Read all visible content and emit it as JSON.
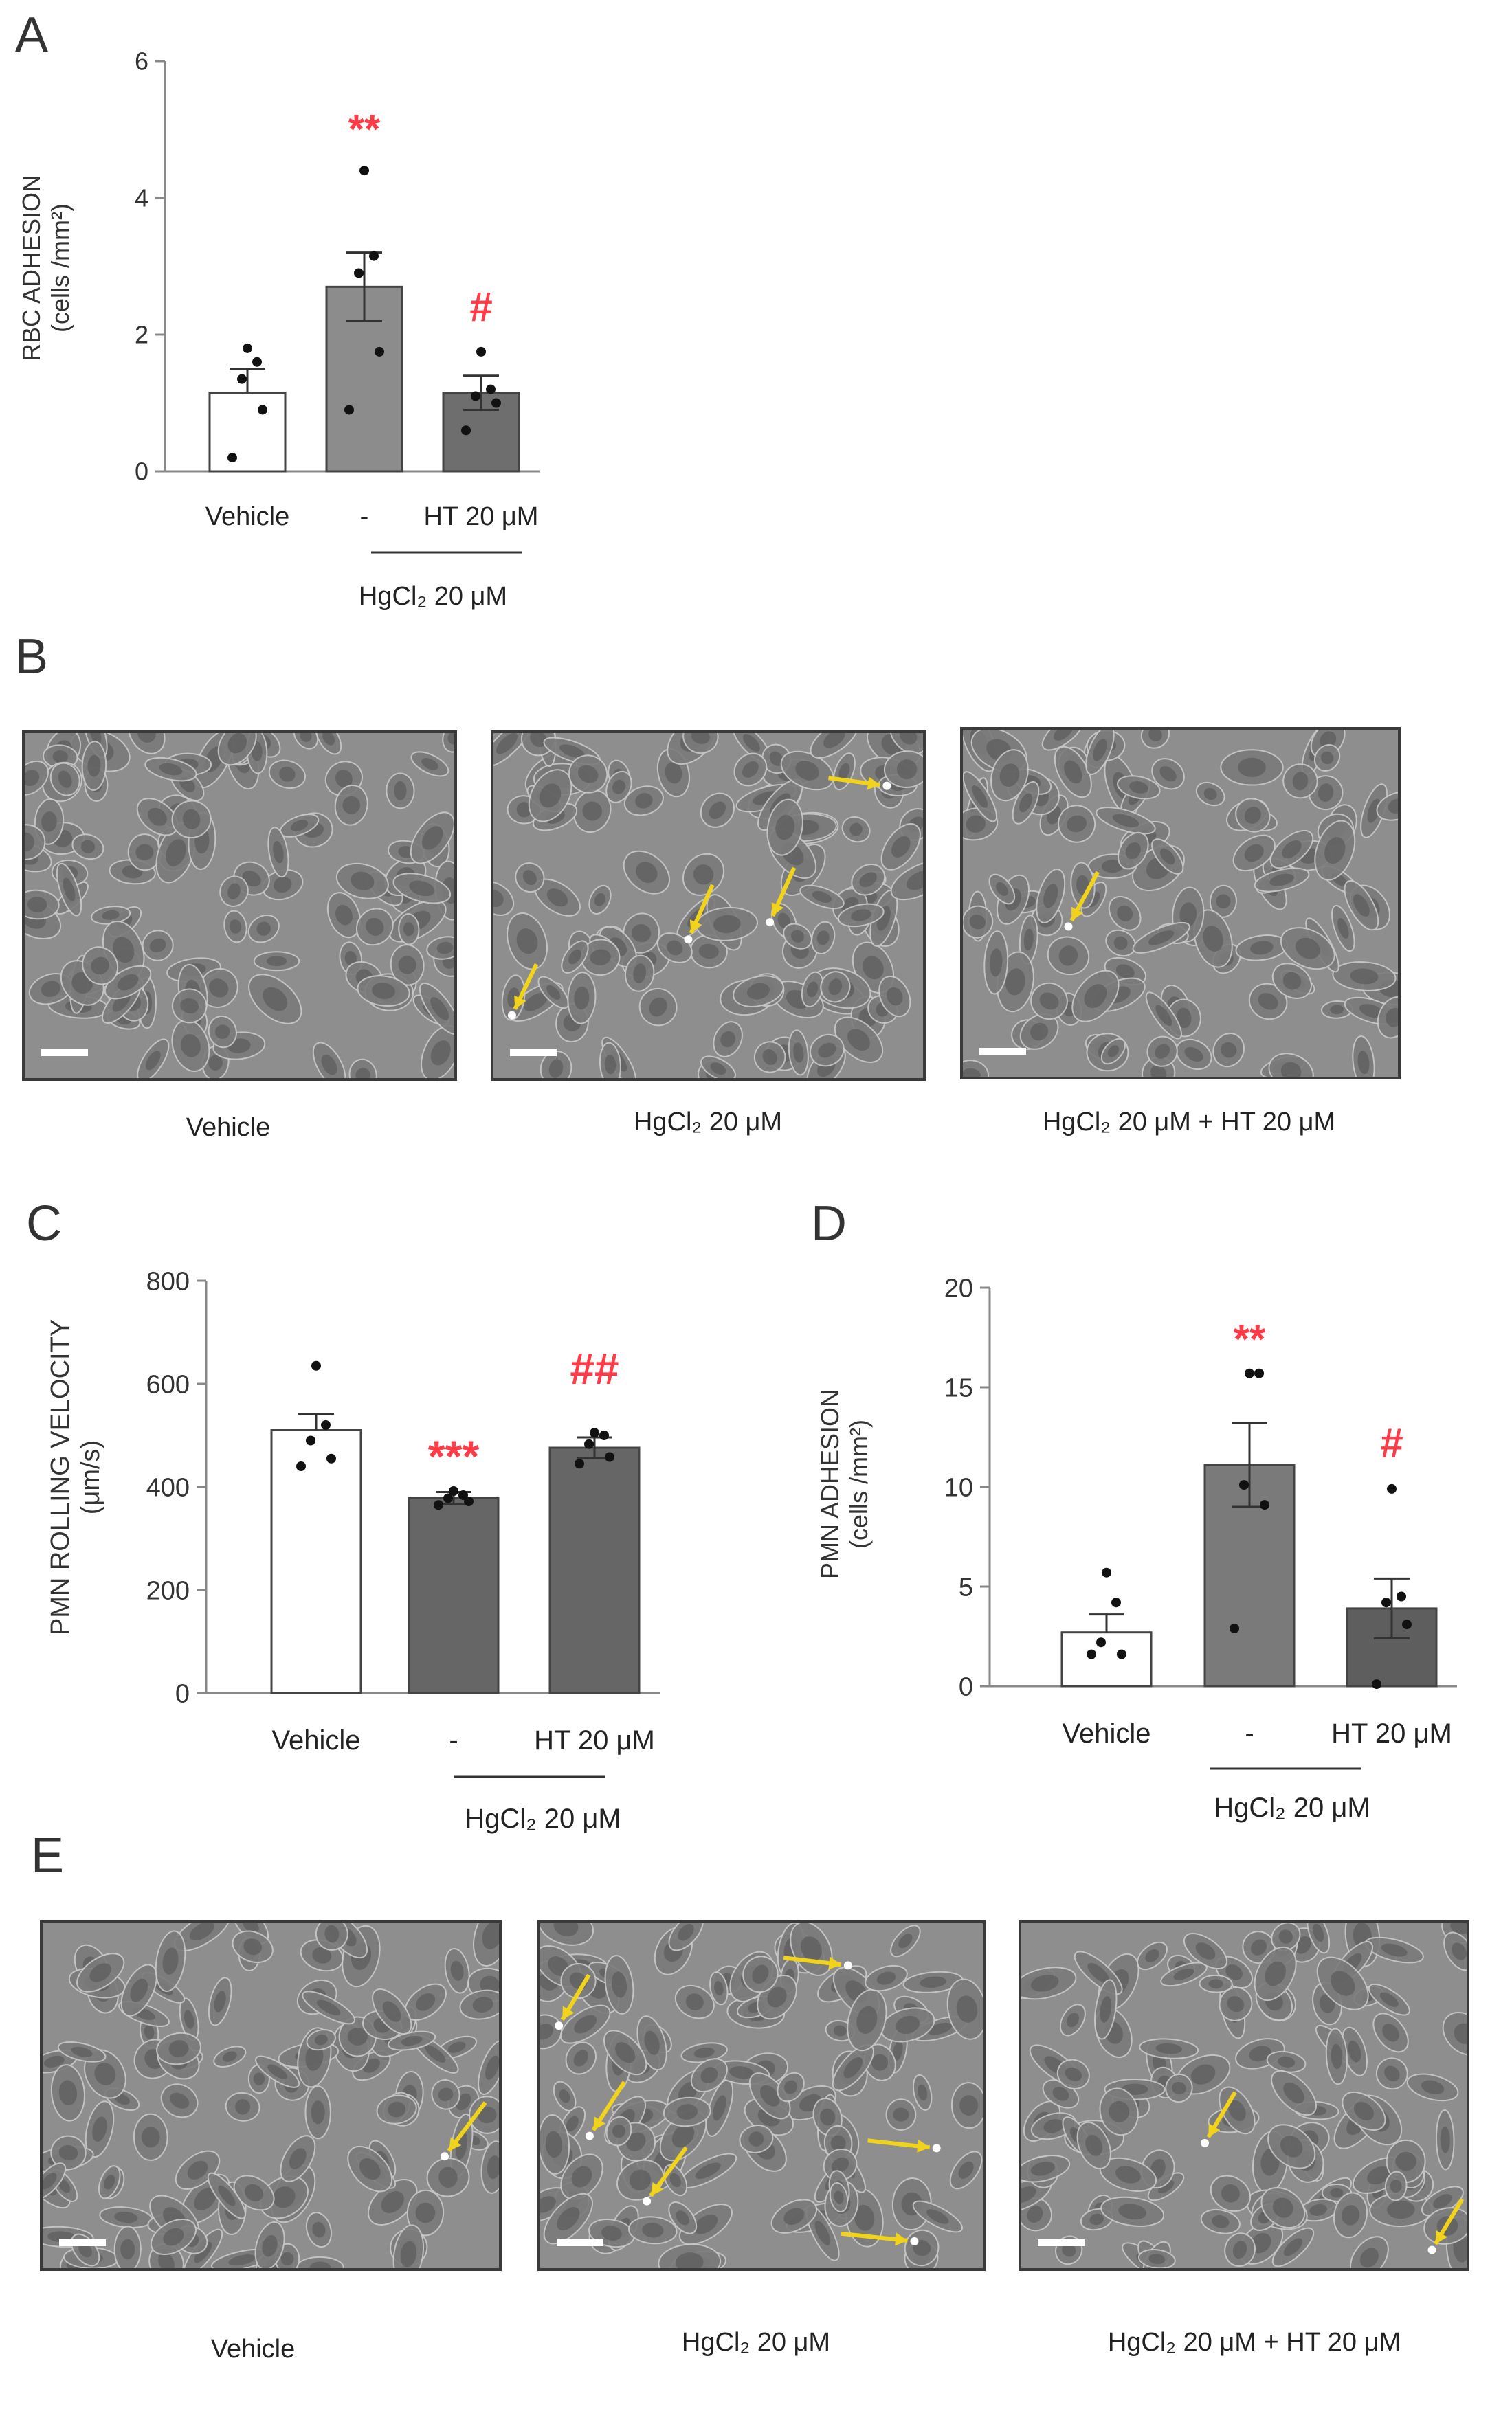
{
  "panels": {
    "A": {
      "letter": "A"
    },
    "B": {
      "letter": "B",
      "captions": [
        "Vehicle",
        "HgCl₂  20 μM",
        "HgCl₂  20 μM + HT 20 μM"
      ]
    },
    "C": {
      "letter": "C"
    },
    "D": {
      "letter": "D"
    },
    "E": {
      "letter": "E",
      "captions": [
        "Vehicle",
        "HgCl₂  20 μM",
        "HgCl₂  20 μM + HT 20 μM"
      ]
    }
  },
  "colors": {
    "sig": "#ff3b47",
    "arrow": "#f2d31b",
    "axis": "#888888",
    "bar_vehicle": "#ffffff",
    "bar_hg": "#8c8c8c",
    "bar_ht": "#6e6e6e",
    "bar_c_hg": "#666666",
    "bar_c_ht": "#666666",
    "bar_d_hg": "#7a7a7a",
    "bar_d_ht": "#5e5e5e"
  },
  "chart_data": [
    {
      "id": "A",
      "type": "bar",
      "categories": [
        "Vehicle",
        "-",
        "HT 20 μM"
      ],
      "group_label": "HgCl₂  20 μM",
      "ylabel": [
        "RBC ADHESION",
        "(cells /mm²)"
      ],
      "ylim": [
        0,
        6
      ],
      "yticks": [
        0,
        2,
        4,
        6
      ],
      "values": [
        1.15,
        2.7,
        1.15
      ],
      "sem": [
        0.35,
        0.5,
        0.25
      ],
      "points": [
        [
          0.2,
          0.9,
          1.35,
          1.6,
          1.8
        ],
        [
          0.9,
          1.75,
          2.9,
          3.15,
          4.4
        ],
        [
          0.6,
          1.0,
          1.1,
          1.2,
          1.75
        ]
      ],
      "significance": [
        "",
        "**",
        "#"
      ],
      "sig_y": [
        null,
        4.8,
        2.2
      ]
    },
    {
      "id": "C",
      "type": "bar",
      "categories": [
        "Vehicle",
        "-",
        "HT 20 μM"
      ],
      "group_label": "HgCl₂  20 μM",
      "ylabel": [
        "PMN ROLLING VELOCITY",
        "(μm/s)"
      ],
      "ylim": [
        0,
        800
      ],
      "yticks": [
        0,
        200,
        400,
        600,
        800
      ],
      "values": [
        510,
        378,
        476
      ],
      "sem": [
        32,
        12,
        20
      ],
      "points": [
        [
          440,
          455,
          490,
          520,
          635
        ],
        [
          365,
          372,
          378,
          384,
          392
        ],
        [
          445,
          458,
          483,
          500,
          505
        ]
      ],
      "significance": [
        "",
        "***",
        "##"
      ],
      "sig_y": [
        null,
        430,
        600
      ]
    },
    {
      "id": "D",
      "type": "bar",
      "categories": [
        "Vehicle",
        "-",
        "HT 20 μM"
      ],
      "group_label": "HgCl₂ 20 μM",
      "ylabel": [
        "PMN ADHESION",
        "(cells /mm²)"
      ],
      "ylim": [
        0,
        20
      ],
      "yticks": [
        0,
        5,
        10,
        15,
        20
      ],
      "values": [
        2.7,
        11.1,
        3.9
      ],
      "sem": [
        0.9,
        2.1,
        1.5
      ],
      "points": [
        [
          1.6,
          1.6,
          2.2,
          4.2,
          5.7
        ],
        [
          2.9,
          9.1,
          10.1,
          15.7,
          15.7
        ],
        [
          0.1,
          3.1,
          4.2,
          4.5,
          9.9
        ]
      ],
      "significance": [
        "",
        "**",
        "#"
      ],
      "sig_y": [
        null,
        16.7,
        11.5
      ]
    }
  ]
}
